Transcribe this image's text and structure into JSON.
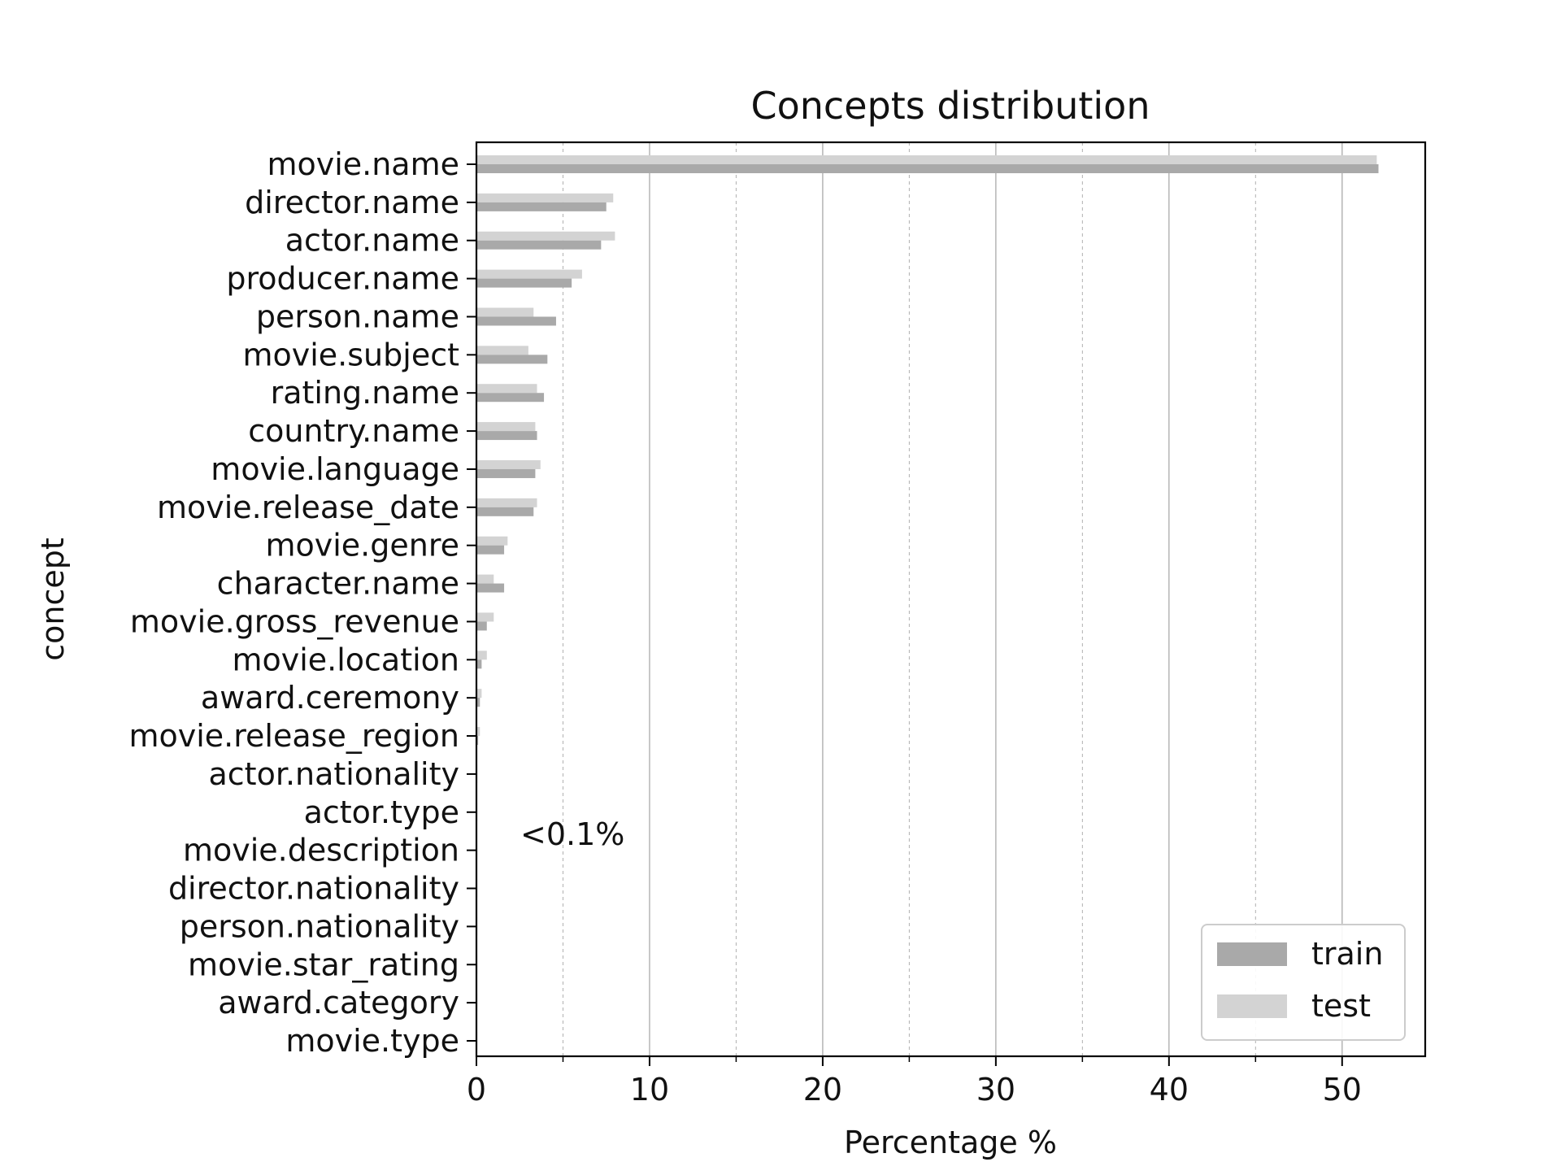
{
  "chart_data": {
    "type": "bar",
    "orientation": "horizontal",
    "title": "Concepts distribution",
    "xlabel": "Percentage %",
    "ylabel": "concept",
    "xlim": [
      0,
      54.8
    ],
    "xticks": [
      0,
      10,
      20,
      30,
      40,
      50
    ],
    "x_minor_ticks": [
      5,
      15,
      25,
      35,
      45
    ],
    "grid": "vertical, major solid and minor dashed",
    "legend_position": "lower right",
    "annotation": "<0.1%",
    "categories": [
      "movie.name",
      "director.name",
      "actor.name",
      "producer.name",
      "person.name",
      "movie.subject",
      "rating.name",
      "country.name",
      "movie.language",
      "movie.release_date",
      "movie.genre",
      "character.name",
      "movie.gross_revenue",
      "movie.location",
      "award.ceremony",
      "movie.release_region",
      "actor.nationality",
      "actor.type",
      "movie.description",
      "director.nationality",
      "person.nationality",
      "movie.star_rating",
      "award.category",
      "movie.type"
    ],
    "series": [
      {
        "name": "train",
        "color": "#a9a9a9",
        "values": [
          52.1,
          7.5,
          7.2,
          5.5,
          4.6,
          4.1,
          3.9,
          3.5,
          3.4,
          3.3,
          1.6,
          1.6,
          0.6,
          0.3,
          0.2,
          0.1,
          0.05,
          0.05,
          0.05,
          0.05,
          0.05,
          0.05,
          0.05,
          0.05
        ]
      },
      {
        "name": "test",
        "color": "#d3d3d3",
        "values": [
          52.0,
          7.9,
          8.0,
          6.1,
          3.3,
          3.0,
          3.5,
          3.4,
          3.7,
          3.5,
          1.8,
          1.0,
          1.0,
          0.6,
          0.3,
          0.2,
          0.05,
          0.05,
          0.05,
          0.05,
          0.05,
          0.05,
          0.05,
          0.05
        ]
      }
    ]
  }
}
